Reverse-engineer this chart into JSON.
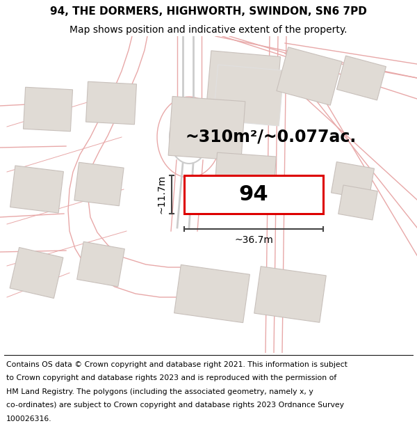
{
  "title_line1": "94, THE DORMERS, HIGHWORTH, SWINDON, SN6 7PD",
  "title_line2": "Map shows position and indicative extent of the property.",
  "area_label": "~310m²/~0.077ac.",
  "number_label": "94",
  "width_label": "~36.7m",
  "height_label": "~11.7m",
  "footer_lines": [
    "Contains OS data © Crown copyright and database right 2021. This information is subject",
    "to Crown copyright and database rights 2023 and is reproduced with the permission of",
    "HM Land Registry. The polygons (including the associated geometry, namely x, y",
    "co-ordinates) are subject to Crown copyright and database rights 2023 Ordnance Survey",
    "100026316."
  ],
  "map_bg": "#f5f0eb",
  "road_color": "#e8a8a8",
  "road_color2": "#d4c0c0",
  "building_fill": "#e0dbd5",
  "building_edge": "#c8c0bb",
  "property_fill": "#ffffff",
  "property_stroke": "#dd0000",
  "dim_color": "#444444",
  "title_fs": 11,
  "subtitle_fs": 10,
  "footer_fs": 7.8,
  "area_fs": 17,
  "number_fs": 22,
  "dim_fs": 10
}
